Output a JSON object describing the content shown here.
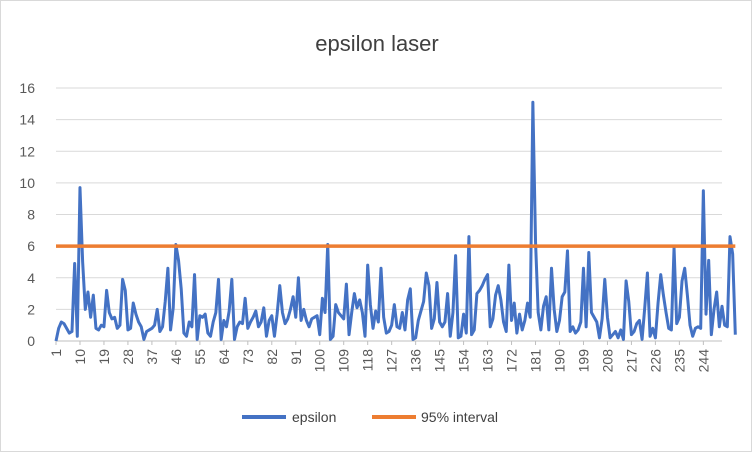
{
  "chart_data": {
    "type": "line",
    "title": "epsilon laser",
    "xlabel": "",
    "ylabel": "",
    "ylim": [
      0,
      16
    ],
    "y_ticks": [
      0,
      2,
      4,
      6,
      8,
      10,
      12,
      14,
      16
    ],
    "x_range": [
      1,
      251
    ],
    "x_ticks": [
      1,
      10,
      19,
      28,
      37,
      46,
      55,
      64,
      73,
      82,
      91,
      100,
      109,
      118,
      127,
      136,
      145,
      154,
      163,
      172,
      181,
      190,
      199,
      208,
      217,
      226,
      235,
      244
    ],
    "grid": "horizontal",
    "legend_position": "bottom",
    "series": [
      {
        "name": "epsilon",
        "color": "#4472c4",
        "values": [
          0.0,
          0.8,
          1.2,
          1.1,
          0.8,
          0.5,
          0.6,
          4.9,
          0.3,
          9.7,
          5.0,
          2.0,
          3.1,
          1.5,
          2.9,
          0.8,
          0.7,
          1.0,
          0.9,
          3.2,
          1.8,
          1.4,
          1.5,
          0.8,
          1.0,
          3.9,
          3.2,
          0.7,
          0.8,
          2.4,
          1.7,
          1.2,
          0.9,
          0.1,
          0.6,
          0.7,
          0.8,
          1.0,
          2.0,
          0.6,
          0.9,
          2.5,
          4.6,
          0.7,
          2.1,
          6.1,
          5.1,
          3.3,
          0.5,
          0.3,
          1.2,
          0.9,
          4.2,
          0.1,
          1.6,
          1.5,
          1.7,
          0.5,
          0.3,
          1.2,
          1.8,
          3.9,
          0.1,
          1.3,
          0.9,
          1.9,
          3.9,
          0.1,
          0.9,
          1.2,
          1.1,
          2.7,
          0.8,
          1.2,
          1.5,
          1.9,
          0.9,
          1.2,
          2.1,
          0.3,
          1.3,
          1.6,
          0.3,
          1.7,
          3.5,
          1.8,
          1.1,
          1.4,
          2.0,
          2.8,
          1.5,
          4.0,
          1.3,
          2.0,
          1.3,
          0.9,
          1.4,
          1.5,
          1.6,
          0.4,
          2.7,
          1.8,
          6.1,
          0.1,
          0.3,
          2.3,
          1.8,
          1.6,
          1.4,
          3.6,
          0.4,
          1.8,
          3.0,
          2.1,
          2.6,
          1.8,
          0.3,
          4.8,
          2.3,
          0.8,
          1.9,
          1.2,
          4.6,
          1.5,
          0.5,
          0.6,
          1.0,
          2.3,
          0.9,
          0.8,
          1.8,
          0.7,
          2.6,
          3.3,
          0.1,
          0.2,
          1.3,
          1.9,
          2.5,
          4.3,
          3.5,
          0.8,
          1.4,
          3.7,
          1.2,
          0.9,
          1.2,
          3.0,
          0.3,
          1.8,
          5.4,
          0.2,
          0.3,
          1.7,
          0.5,
          6.6,
          0.4,
          0.7,
          3.0,
          3.2,
          3.5,
          3.9,
          4.2,
          0.9,
          1.4,
          2.9,
          3.5,
          2.6,
          1.2,
          0.6,
          4.8,
          1.3,
          2.4,
          0.5,
          1.7,
          0.7,
          1.3,
          2.4,
          1.5,
          15.1,
          6.3,
          1.8,
          0.7,
          2.2,
          2.8,
          0.7,
          4.6,
          2.0,
          0.6,
          1.3,
          2.8,
          3.1,
          5.7,
          0.6,
          0.9,
          0.5,
          0.7,
          1.2,
          4.6,
          0.9,
          5.6,
          1.8,
          1.5,
          1.2,
          0.2,
          1.4,
          3.9,
          1.5,
          0.2,
          0.4,
          0.6,
          0.2,
          0.7,
          0.1,
          3.8,
          2.5,
          0.4,
          0.6,
          1.1,
          1.3,
          0.1,
          2.1,
          4.3,
          0.3,
          0.8,
          0.2,
          2.4,
          4.2,
          2.9,
          1.8,
          0.8,
          0.7,
          5.9,
          1.1,
          1.5,
          3.8,
          4.6,
          2.9,
          1.0,
          0.3,
          0.8,
          0.9,
          0.8,
          9.5,
          1.7,
          5.1,
          0.4,
          2.0,
          3.1,
          0.9,
          2.2,
          1.0,
          0.9,
          6.6,
          5.5,
          0.4
        ]
      },
      {
        "name": "95% interval",
        "color": "#ed7d31",
        "constant": 6.0
      }
    ]
  }
}
